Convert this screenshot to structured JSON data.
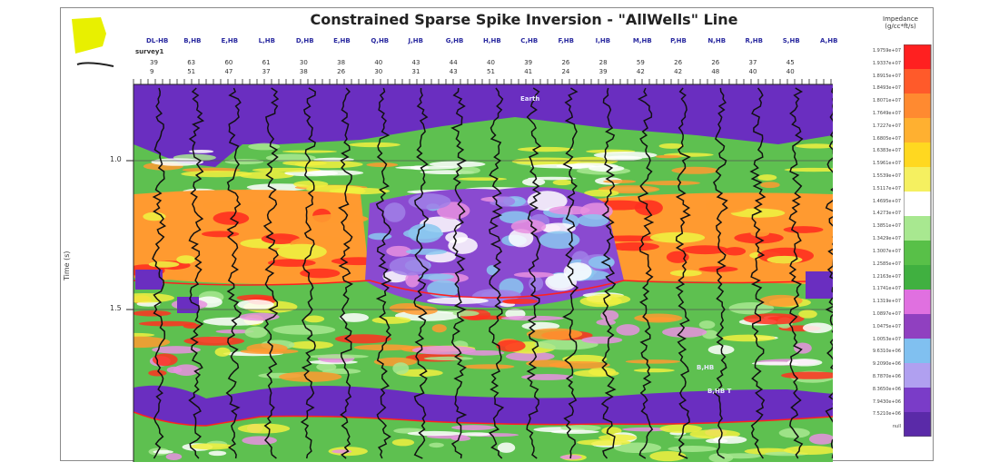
{
  "header": {
    "title": "Constrained Sparse Spike Inversion - \"AllWells\" Line",
    "legend_title": "Impedance (g/cc*ft/s)"
  },
  "y_axis": {
    "label": "Time (s)",
    "ticks": [
      "1.0",
      "1.5"
    ]
  },
  "wells": {
    "line_label": "survey1",
    "names": [
      "DL-HB",
      "B,HB",
      "E,HB",
      "L,HB",
      "D,HB",
      "E,HB",
      "Q,HB",
      "J,HB",
      "G,HB",
      "H,HB",
      "C,HB",
      "F,HB",
      "I,HB",
      "M,HB",
      "P,HB",
      "N,HB",
      "R,HB",
      "S,HB",
      "A,HB"
    ],
    "nums1": [
      "39",
      "63",
      "60",
      "61",
      "30",
      "38",
      "40",
      "43",
      "44",
      "40",
      "39",
      "26",
      "28",
      "59",
      "26",
      "26",
      "37",
      "45",
      ""
    ],
    "nums2": [
      "9",
      "51",
      "47",
      "37",
      "38",
      "26",
      "30",
      "31",
      "43",
      "51",
      "41",
      "24",
      "39",
      "42",
      "42",
      "48",
      "40",
      "40",
      ""
    ]
  },
  "annotations": {
    "top": "Earth",
    "bottom1": "B,HB",
    "bottom2": "B,HB T"
  },
  "legend": {
    "labels": [
      "1.9759e+07",
      "1.9337e+07",
      "1.8915e+07",
      "1.8493e+07",
      "1.8071e+07",
      "1.7649e+07",
      "1.7227e+07",
      "1.6805e+07",
      "1.6383e+07",
      "1.5961e+07",
      "1.5539e+07",
      "1.5117e+07",
      "1.4695e+07",
      "1.4273e+07",
      "1.3851e+07",
      "1.3429e+07",
      "1.3007e+07",
      "1.2585e+07",
      "1.2163e+07",
      "1.1741e+07",
      "1.1319e+07",
      "1.0897e+07",
      "1.0475e+07",
      "1.0053e+07",
      "9.6310e+06",
      "9.2090e+06",
      "8.7870e+06",
      "8.3650e+06",
      "7.9430e+06",
      "7.5210e+06",
      "null"
    ],
    "colors": [
      "#ff2020",
      "#ff5a2a",
      "#ff8a30",
      "#ffb030",
      "#ffd820",
      "#f5f060",
      "#ffffff",
      "#a8e890",
      "#58c048",
      "#40b040",
      "#e070e0",
      "#9040c0",
      "#80c0f0",
      "#b0a0f0",
      "#7a3cc8",
      "#5a2aa8"
    ]
  },
  "section": {
    "colors": {
      "purple": "#6a2ec0",
      "violet": "#8a4ad0",
      "lavender": "#a080e8",
      "lightblue": "#8ac8f0",
      "green": "#5ec050",
      "lightgreen": "#a8e890",
      "yellow": "#f0f040",
      "orange": "#ff9a30",
      "red": "#ff3020",
      "white": "#ffffff",
      "pink": "#e890e0",
      "trace": "#111111",
      "horizon": "#ff2020"
    }
  }
}
